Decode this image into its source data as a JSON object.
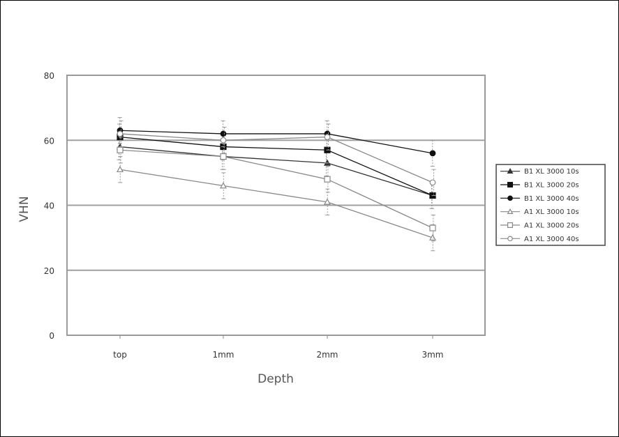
{
  "chart_data": {
    "type": "line",
    "title": "",
    "xlabel": "Depth",
    "ylabel": "VHN",
    "categories": [
      "top",
      "1mm",
      "2mm",
      "3mm"
    ],
    "ylim": [
      0,
      80
    ],
    "yticks": [
      0,
      20,
      40,
      60,
      80
    ],
    "grid": true,
    "legend_position": "right",
    "series": [
      {
        "name": "B1 XL 3000 10s",
        "marker": "filled-triangle",
        "color": "#333333",
        "values": [
          58,
          55,
          53,
          43
        ],
        "error": [
          4,
          4,
          4,
          4
        ]
      },
      {
        "name": "B1 XL 3000 20s",
        "marker": "filled-square",
        "color": "#111111",
        "values": [
          61,
          58,
          57,
          43
        ],
        "error": [
          4,
          4,
          4,
          4
        ]
      },
      {
        "name": "B1 XL 3000 40s",
        "marker": "filled-circle",
        "color": "#111111",
        "values": [
          63,
          62,
          62,
          56
        ],
        "error": [
          4,
          4,
          4,
          4
        ]
      },
      {
        "name": "A1 XL 3000 10s",
        "marker": "open-triangle",
        "color": "#888888",
        "values": [
          51,
          46,
          41,
          30
        ],
        "error": [
          4,
          4,
          4,
          4
        ]
      },
      {
        "name": "A1 XL 3000 20s",
        "marker": "open-square",
        "color": "#888888",
        "values": [
          57,
          55,
          48,
          33
        ],
        "error": [
          4,
          4,
          4,
          4
        ]
      },
      {
        "name": "A1 XL 3000 40s",
        "marker": "open-circle",
        "color": "#888888",
        "values": [
          62,
          60,
          61,
          47
        ],
        "error": [
          4,
          4,
          4,
          4
        ]
      }
    ]
  }
}
